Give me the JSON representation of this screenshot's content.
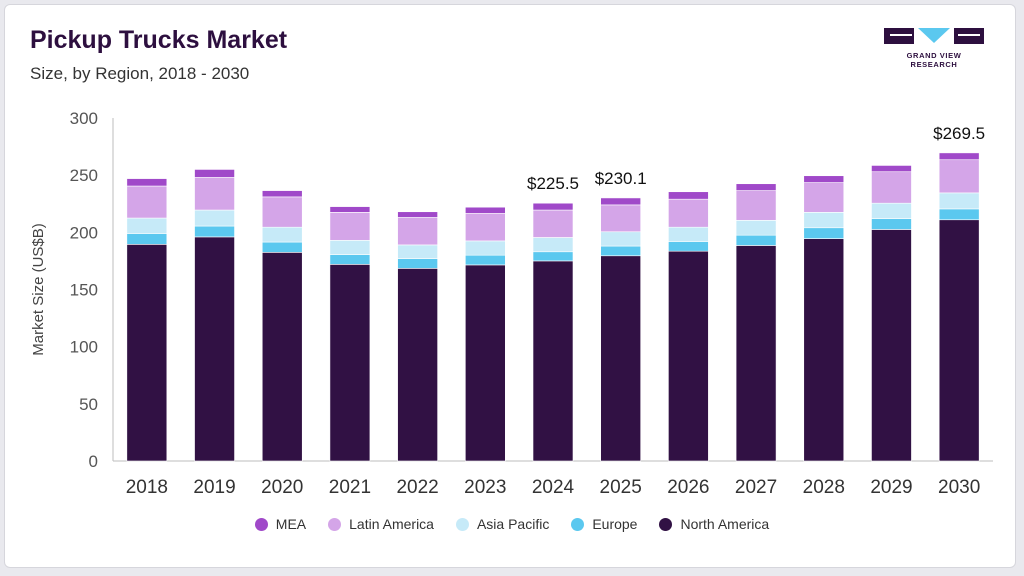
{
  "header": {
    "title": "Pickup Trucks Market",
    "subtitle": "Size, by Region, 2018 - 2030"
  },
  "logo": {
    "text": "GRAND VIEW RESEARCH",
    "icon": "grand-view-research-logo",
    "colors": {
      "primary": "#2d0f3f",
      "accent": "#5bc8ef"
    }
  },
  "chart_data": {
    "type": "bar",
    "stacked": true,
    "title": "Pickup Trucks Market",
    "subtitle": "Size, by Region, 2018 - 2030",
    "xlabel": "",
    "ylabel": "Market Size (US$B)",
    "ylim": [
      0,
      300
    ],
    "yticks": [
      0,
      50,
      100,
      150,
      200,
      250,
      300
    ],
    "grid": false,
    "legend_position": "bottom",
    "categories": [
      "2018",
      "2019",
      "2020",
      "2021",
      "2022",
      "2023",
      "2024",
      "2025",
      "2026",
      "2027",
      "2028",
      "2029",
      "2030"
    ],
    "series": [
      {
        "name": "North America",
        "color": "#311144",
        "values": [
          189.5,
          196.0,
          182.5,
          172.0,
          168.5,
          171.5,
          175.0,
          179.5,
          183.5,
          188.5,
          194.5,
          202.5,
          211.0
        ]
      },
      {
        "name": "Europe",
        "color": "#5bc8ef",
        "values": [
          9.5,
          9.5,
          9.0,
          8.5,
          8.5,
          8.5,
          8.0,
          8.5,
          8.5,
          9.0,
          9.5,
          9.5,
          9.5
        ]
      },
      {
        "name": "Asia Pacific",
        "color": "#c6eaf8",
        "values": [
          13.5,
          14.0,
          13.0,
          12.5,
          12.0,
          12.5,
          12.5,
          12.5,
          12.5,
          13.0,
          13.5,
          13.5,
          14.0
        ]
      },
      {
        "name": "Latin America",
        "color": "#d4a5e8",
        "values": [
          28.0,
          28.5,
          26.5,
          24.5,
          24.0,
          24.0,
          24.0,
          23.5,
          24.5,
          26.0,
          26.0,
          27.5,
          29.0
        ]
      },
      {
        "name": "MEA",
        "color": "#a049c9",
        "values": [
          6.5,
          7.0,
          5.5,
          5.0,
          5.0,
          5.5,
          6.0,
          6.1,
          6.5,
          6.0,
          6.0,
          5.5,
          6.0
        ]
      }
    ],
    "legend_order": [
      "MEA",
      "Latin America",
      "Asia Pacific",
      "Europe",
      "North America"
    ],
    "annotations": [
      {
        "category": "2024",
        "label": "$225.5"
      },
      {
        "category": "2025",
        "label": "$230.1"
      },
      {
        "category": "2030",
        "label": "$269.5"
      }
    ]
  }
}
